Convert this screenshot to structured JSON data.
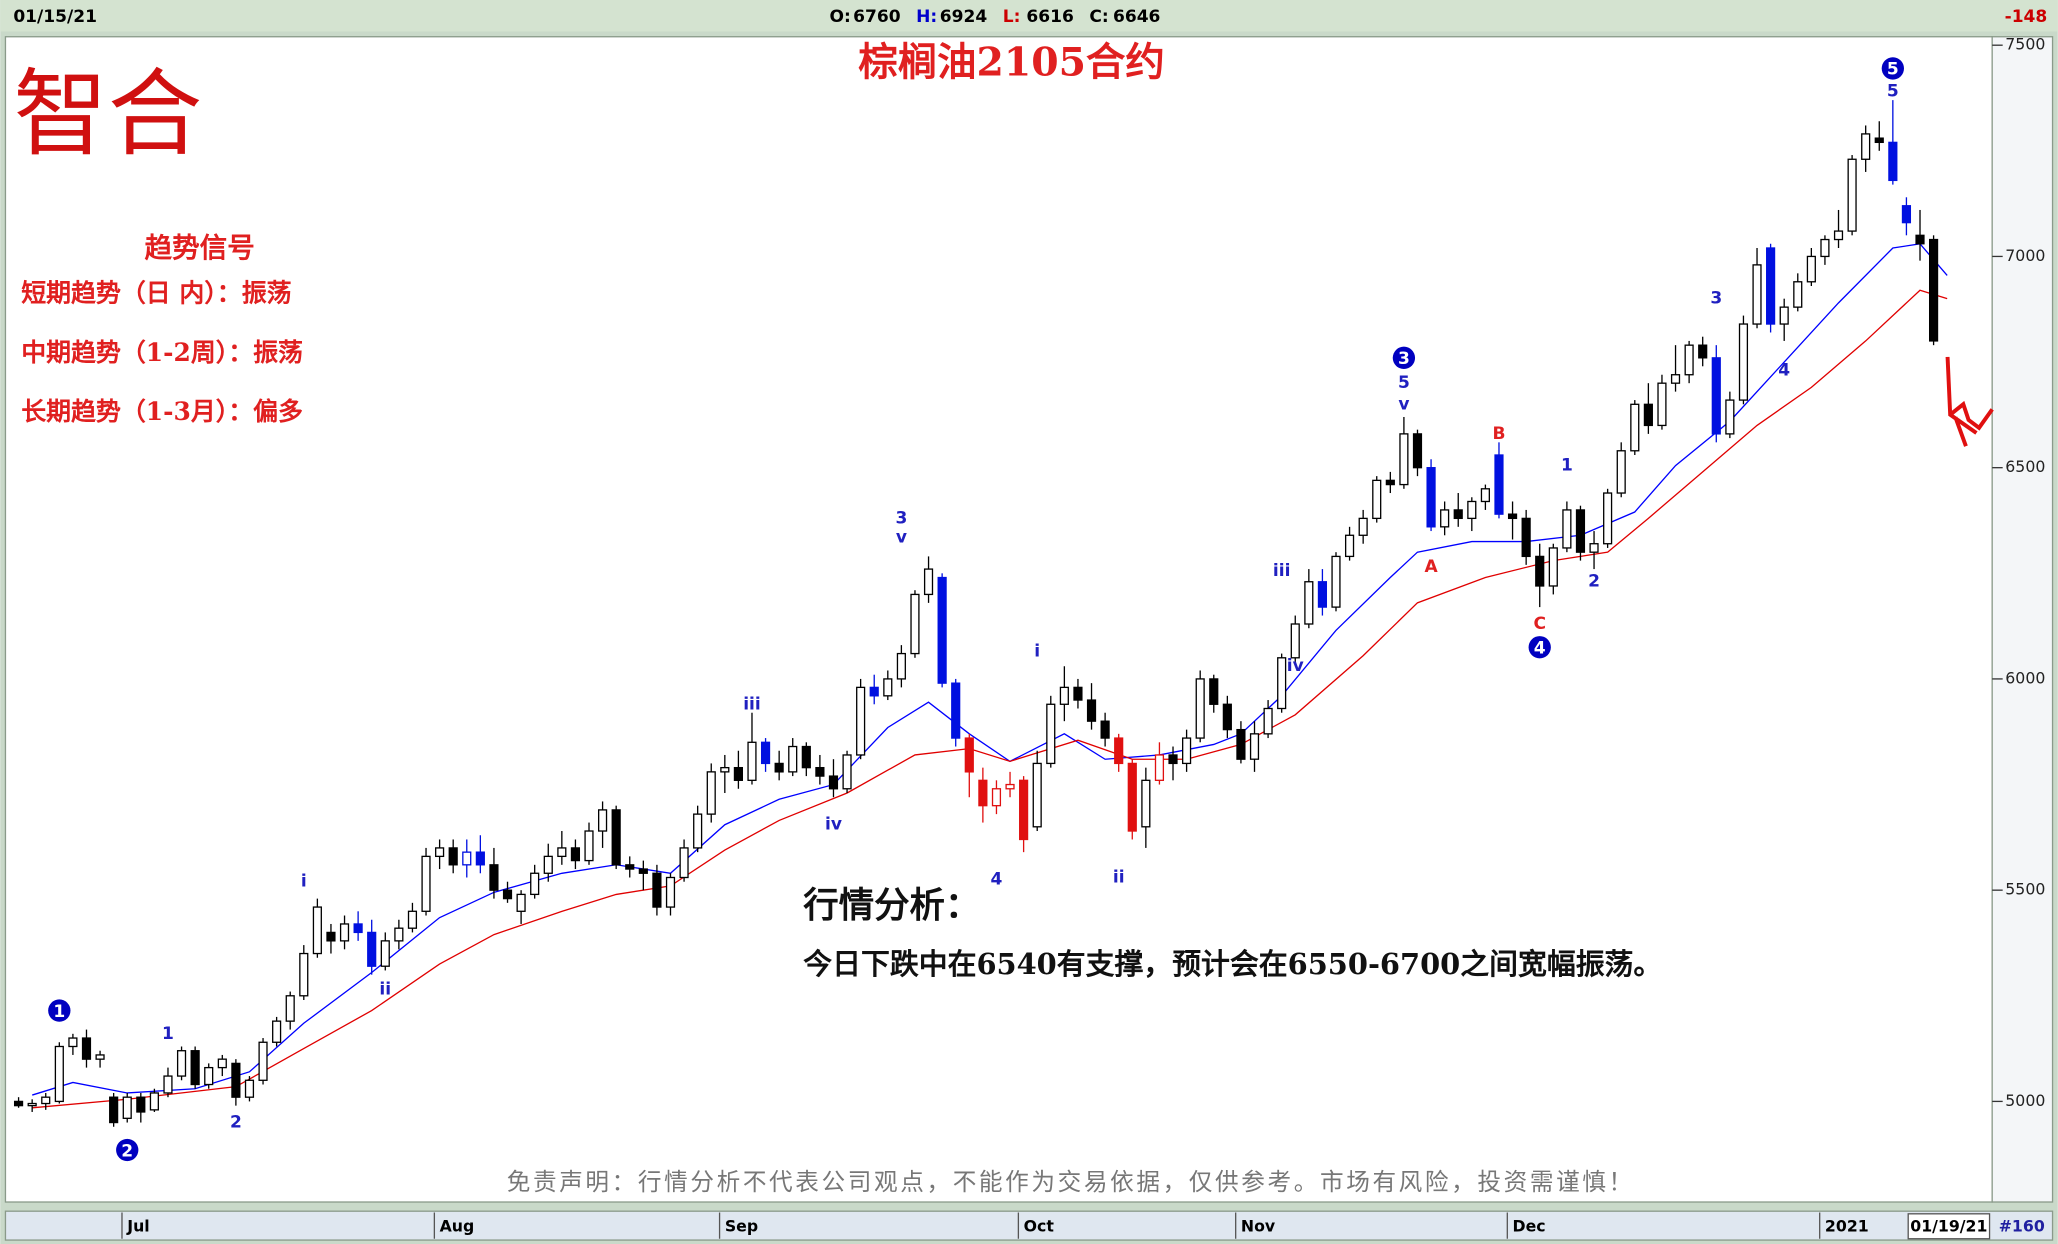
{
  "header": {
    "date": "01/15/21",
    "quote": [
      {
        "label": "O:",
        "value": 6760,
        "color": "#000000"
      },
      {
        "label": "H:",
        "value": 6924,
        "color": "#0000cc"
      },
      {
        "label": "L:",
        "value": 6616,
        "color": "#cc0000"
      },
      {
        "label": "C:",
        "value": 6646,
        "color": "#000000"
      }
    ],
    "change": -148
  },
  "logo": "智合",
  "signals": {
    "title": "趋势信号",
    "items": [
      "短期趋势（日 内）：振荡",
      "中期趋势（1-2周）：振荡",
      "长期趋势（1-3月）：偏多"
    ]
  },
  "analysis": {
    "title": "行情分析：",
    "text": "今日下跌中在6540有支撑，预计会在6550-6700之间宽幅振荡。"
  },
  "disclaimer": "免责声明：行情分析不代表公司观点，不能作为交易依据，仅供参考。市场有风险，投资需谨慎！",
  "footer": {
    "date": "01/19/21",
    "count": "#160"
  },
  "chart_data": {
    "type": "candlestick",
    "title": "棕榈油2105合约",
    "ylim": [
      4765,
      7520
    ],
    "yticks": [
      5000,
      5500,
      6000,
      6500,
      7000,
      7500
    ],
    "categories": [
      null,
      null,
      null,
      null,
      null,
      null,
      null,
      null,
      "Jul",
      null,
      null,
      null,
      null,
      null,
      null,
      null,
      null,
      null,
      null,
      null,
      null,
      null,
      null,
      null,
      null,
      null,
      null,
      null,
      null,
      null,
      null,
      "Aug",
      null,
      null,
      null,
      null,
      null,
      null,
      null,
      null,
      null,
      null,
      null,
      null,
      null,
      null,
      null,
      null,
      null,
      null,
      null,
      null,
      "Sep",
      null,
      null,
      null,
      null,
      null,
      null,
      null,
      null,
      null,
      null,
      null,
      null,
      null,
      null,
      null,
      null,
      null,
      null,
      null,
      null,
      null,
      "Oct",
      null,
      null,
      null,
      null,
      null,
      null,
      null,
      null,
      null,
      null,
      null,
      null,
      null,
      null,
      null,
      "Nov",
      null,
      null,
      null,
      null,
      null,
      null,
      null,
      null,
      null,
      null,
      null,
      null,
      null,
      null,
      null,
      null,
      null,
      null,
      null,
      "Dec",
      null,
      null,
      null,
      null,
      null,
      null,
      null,
      null,
      null,
      null,
      null,
      null,
      null,
      null,
      null,
      null,
      null,
      null,
      null,
      null,
      null,
      null,
      "2021",
      null,
      null,
      null,
      null,
      null,
      null,
      null,
      null
    ],
    "ohlc": [
      [
        5000,
        5010,
        4985,
        4990
      ],
      [
        4990,
        5005,
        4975,
        4995
      ],
      [
        4995,
        5020,
        4980,
        5010
      ],
      [
        5000,
        5140,
        4995,
        5130
      ],
      [
        5130,
        5160,
        5110,
        5150
      ],
      [
        5150,
        5170,
        5080,
        5100
      ],
      [
        5100,
        5120,
        5080,
        5110
      ],
      [
        5010,
        5020,
        4940,
        4950
      ],
      [
        4960,
        5020,
        4950,
        5010
      ],
      [
        5010,
        5020,
        4950,
        4975
      ],
      [
        4980,
        5030,
        4975,
        5020
      ],
      [
        5020,
        5080,
        5010,
        5060
      ],
      [
        5060,
        5130,
        5050,
        5120
      ],
      [
        5120,
        5130,
        5030,
        5040
      ],
      [
        5040,
        5090,
        5030,
        5080
      ],
      [
        5080,
        5110,
        5060,
        5100
      ],
      [
        5090,
        5100,
        4990,
        5010
      ],
      [
        5010,
        5060,
        5000,
        5050
      ],
      [
        5050,
        5150,
        5040,
        5140
      ],
      [
        5140,
        5200,
        5130,
        5190
      ],
      [
        5190,
        5260,
        5170,
        5250
      ],
      [
        5250,
        5370,
        5240,
        5350
      ],
      [
        5350,
        5480,
        5340,
        5460
      ],
      [
        5400,
        5420,
        5350,
        5380
      ],
      [
        5380,
        5440,
        5360,
        5420
      ],
      [
        5420,
        5450,
        5380,
        5400
      ],
      [
        5400,
        5430,
        5300,
        5320
      ],
      [
        5320,
        5400,
        5310,
        5380
      ],
      [
        5380,
        5430,
        5360,
        5410
      ],
      [
        5410,
        5470,
        5400,
        5450
      ],
      [
        5450,
        5600,
        5440,
        5580
      ],
      [
        5580,
        5620,
        5550,
        5600
      ],
      [
        5600,
        5620,
        5540,
        5560
      ],
      [
        5560,
        5620,
        5530,
        5590
      ],
      [
        5590,
        5630,
        5540,
        5560
      ],
      [
        5560,
        5600,
        5480,
        5500
      ],
      [
        5500,
        5520,
        5470,
        5480
      ],
      [
        5450,
        5500,
        5420,
        5490
      ],
      [
        5490,
        5560,
        5480,
        5540
      ],
      [
        5540,
        5610,
        5520,
        5580
      ],
      [
        5580,
        5640,
        5560,
        5600
      ],
      [
        5600,
        5620,
        5550,
        5570
      ],
      [
        5570,
        5660,
        5560,
        5640
      ],
      [
        5640,
        5710,
        5600,
        5690
      ],
      [
        5690,
        5700,
        5550,
        5560
      ],
      [
        5560,
        5580,
        5530,
        5550
      ],
      [
        5550,
        5570,
        5500,
        5540
      ],
      [
        5540,
        5560,
        5440,
        5460
      ],
      [
        5460,
        5540,
        5440,
        5530
      ],
      [
        5530,
        5620,
        5520,
        5600
      ],
      [
        5600,
        5700,
        5590,
        5680
      ],
      [
        5680,
        5800,
        5660,
        5780
      ],
      [
        5780,
        5820,
        5730,
        5790
      ],
      [
        5790,
        5830,
        5740,
        5760
      ],
      [
        5760,
        5920,
        5750,
        5850
      ],
      [
        5850,
        5860,
        5780,
        5800
      ],
      [
        5800,
        5830,
        5760,
        5780
      ],
      [
        5780,
        5860,
        5770,
        5840
      ],
      [
        5840,
        5850,
        5770,
        5790
      ],
      [
        5790,
        5820,
        5750,
        5770
      ],
      [
        5770,
        5810,
        5720,
        5740
      ],
      [
        5740,
        5830,
        5730,
        5820
      ],
      [
        5820,
        6000,
        5810,
        5980
      ],
      [
        5980,
        6010,
        5940,
        5960
      ],
      [
        5960,
        6020,
        5950,
        6000
      ],
      [
        6000,
        6080,
        5980,
        6060
      ],
      [
        6060,
        6210,
        6050,
        6200
      ],
      [
        6200,
        6290,
        6180,
        6260
      ],
      [
        6240,
        6250,
        5980,
        5990
      ],
      [
        5990,
        6000,
        5840,
        5860
      ],
      [
        5860,
        5870,
        5720,
        5780
      ],
      [
        5760,
        5790,
        5660,
        5700
      ],
      [
        5700,
        5760,
        5680,
        5740
      ],
      [
        5740,
        5780,
        5720,
        5750
      ],
      [
        5760,
        5770,
        5590,
        5620
      ],
      [
        5650,
        5830,
        5640,
        5800
      ],
      [
        5800,
        5960,
        5790,
        5940
      ],
      [
        5940,
        6030,
        5900,
        5980
      ],
      [
        5980,
        6000,
        5930,
        5950
      ],
      [
        5950,
        5990,
        5880,
        5900
      ],
      [
        5900,
        5920,
        5840,
        5860
      ],
      [
        5860,
        5870,
        5780,
        5800
      ],
      [
        5800,
        5810,
        5620,
        5640
      ],
      [
        5650,
        5790,
        5600,
        5760
      ],
      [
        5760,
        5850,
        5750,
        5820
      ],
      [
        5820,
        5840,
        5760,
        5800
      ],
      [
        5800,
        5880,
        5780,
        5860
      ],
      [
        5860,
        6020,
        5850,
        6000
      ],
      [
        6000,
        6010,
        5920,
        5940
      ],
      [
        5940,
        5960,
        5860,
        5880
      ],
      [
        5880,
        5900,
        5800,
        5810
      ],
      [
        5810,
        5900,
        5780,
        5870
      ],
      [
        5870,
        5950,
        5860,
        5930
      ],
      [
        5930,
        6060,
        5920,
        6050
      ],
      [
        6050,
        6150,
        6040,
        6130
      ],
      [
        6130,
        6260,
        6120,
        6230
      ],
      [
        6230,
        6260,
        6150,
        6170
      ],
      [
        6170,
        6300,
        6160,
        6290
      ],
      [
        6290,
        6360,
        6280,
        6340
      ],
      [
        6340,
        6400,
        6320,
        6380
      ],
      [
        6380,
        6480,
        6370,
        6470
      ],
      [
        6470,
        6490,
        6440,
        6460
      ],
      [
        6460,
        6620,
        6450,
        6580
      ],
      [
        6580,
        6590,
        6480,
        6500
      ],
      [
        6500,
        6520,
        6350,
        6360
      ],
      [
        6360,
        6420,
        6340,
        6400
      ],
      [
        6400,
        6440,
        6360,
        6380
      ],
      [
        6380,
        6430,
        6350,
        6420
      ],
      [
        6420,
        6460,
        6400,
        6450
      ],
      [
        6530,
        6560,
        6380,
        6390
      ],
      [
        6390,
        6420,
        6330,
        6380
      ],
      [
        6380,
        6400,
        6270,
        6290
      ],
      [
        6290,
        6320,
        6170,
        6220
      ],
      [
        6220,
        6320,
        6200,
        6310
      ],
      [
        6310,
        6420,
        6300,
        6400
      ],
      [
        6400,
        6410,
        6280,
        6300
      ],
      [
        6300,
        6350,
        6260,
        6320
      ],
      [
        6320,
        6450,
        6310,
        6440
      ],
      [
        6440,
        6560,
        6430,
        6540
      ],
      [
        6540,
        6660,
        6530,
        6650
      ],
      [
        6650,
        6700,
        6580,
        6600
      ],
      [
        6600,
        6720,
        6590,
        6700
      ],
      [
        6700,
        6790,
        6680,
        6720
      ],
      [
        6720,
        6800,
        6700,
        6790
      ],
      [
        6790,
        6810,
        6740,
        6760
      ],
      [
        6760,
        6790,
        6560,
        6580
      ],
      [
        6580,
        6680,
        6570,
        6660
      ],
      [
        6660,
        6860,
        6650,
        6840
      ],
      [
        6840,
        7020,
        6830,
        6980
      ],
      [
        7020,
        7030,
        6820,
        6840
      ],
      [
        6840,
        6900,
        6800,
        6880
      ],
      [
        6880,
        6960,
        6870,
        6940
      ],
      [
        6940,
        7020,
        6930,
        7000
      ],
      [
        7000,
        7050,
        6980,
        7040
      ],
      [
        7040,
        7110,
        7020,
        7060
      ],
      [
        7060,
        7240,
        7050,
        7230
      ],
      [
        7230,
        7310,
        7200,
        7290
      ],
      [
        7280,
        7320,
        7250,
        7270
      ],
      [
        7270,
        7370,
        7170,
        7180
      ],
      [
        7120,
        7140,
        7050,
        7080
      ],
      [
        7050,
        7110,
        6990,
        7030
      ],
      [
        7040,
        7050,
        6790,
        6800
      ]
    ],
    "blue_bars": [
      25,
      26,
      33,
      34,
      55,
      63,
      68,
      69,
      96,
      104,
      109,
      125,
      129,
      138,
      139
    ],
    "red_bars": [
      70,
      71,
      72,
      73,
      74,
      81,
      82,
      84
    ],
    "lines": [
      {
        "color": "#0000ff",
        "x": [
          1,
          4,
          8,
          13,
          17,
          21,
          26,
          31,
          35,
          40,
          44,
          48,
          52,
          56,
          60,
          64,
          67,
          70,
          73,
          77,
          80,
          84,
          88,
          90,
          93,
          97,
          101,
          103,
          107,
          111,
          115,
          119,
          122,
          126,
          130,
          134,
          138,
          140,
          142
        ],
        "values": [
          5015,
          5045,
          5020,
          5030,
          5070,
          5185,
          5305,
          5435,
          5495,
          5540,
          5560,
          5540,
          5655,
          5715,
          5750,
          5885,
          5945,
          5870,
          5805,
          5870,
          5810,
          5820,
          5845,
          5870,
          5960,
          6115,
          6240,
          6300,
          6325,
          6325,
          6340,
          6395,
          6505,
          6610,
          6750,
          6890,
          7020,
          7030,
          6955
        ]
      },
      {
        "color": "#e00000",
        "x": [
          1,
          8,
          16,
          21,
          26,
          31,
          35,
          40,
          44,
          48,
          52,
          56,
          61,
          66,
          70,
          73,
          78,
          82,
          86,
          90,
          94,
          99,
          103,
          108,
          113,
          117,
          120,
          124,
          128,
          132,
          136,
          140,
          142
        ],
        "values": [
          4985,
          5005,
          5035,
          5125,
          5215,
          5325,
          5395,
          5450,
          5490,
          5510,
          5595,
          5665,
          5730,
          5820,
          5835,
          5805,
          5855,
          5810,
          5810,
          5845,
          5915,
          6055,
          6180,
          6240,
          6280,
          6300,
          6380,
          6490,
          6600,
          6690,
          6800,
          6920,
          6900
        ]
      }
    ],
    "annotations": [
      {
        "label": "1",
        "x": 3,
        "y": 5215,
        "style": "circle",
        "color": "#0000c0"
      },
      {
        "label": "2",
        "x": 8,
        "y": 4885,
        "style": "circle",
        "color": "#0000c0"
      },
      {
        "label": "1",
        "x": 11,
        "y": 5160,
        "style": "plain",
        "color": "#2020c0"
      },
      {
        "label": "2",
        "x": 16,
        "y": 4950,
        "style": "plain",
        "color": "#2020c0"
      },
      {
        "label": "i",
        "x": 21,
        "y": 5520,
        "style": "plain",
        "color": "#2020c0"
      },
      {
        "label": "ii",
        "x": 27,
        "y": 5265,
        "style": "plain",
        "color": "#2020c0"
      },
      {
        "label": "iii",
        "x": 54,
        "y": 5940,
        "style": "plain",
        "color": "#2020c0"
      },
      {
        "label": "iv",
        "x": 60,
        "y": 5655,
        "style": "plain",
        "color": "#2020c0"
      },
      {
        "label": "3",
        "x": 65,
        "y": 6380,
        "style": "plain",
        "color": "#2020c0"
      },
      {
        "label": "v",
        "x": 65,
        "y": 6335,
        "style": "plain",
        "color": "#2020c0"
      },
      {
        "label": "4",
        "x": 72,
        "y": 5525,
        "style": "plain",
        "color": "#2020c0"
      },
      {
        "label": "i",
        "x": 75,
        "y": 6065,
        "style": "plain",
        "color": "#2020c0"
      },
      {
        "label": "ii",
        "x": 81,
        "y": 5530,
        "style": "plain",
        "color": "#2020c0"
      },
      {
        "label": "iii",
        "x": 93,
        "y": 6255,
        "style": "plain",
        "color": "#2020c0"
      },
      {
        "label": "iv",
        "x": 94,
        "y": 6030,
        "style": "plain",
        "color": "#2020c0"
      },
      {
        "label": "3",
        "x": 102,
        "y": 6760,
        "style": "circle",
        "color": "#0000c0"
      },
      {
        "label": "5",
        "x": 102,
        "y": 6700,
        "style": "plain",
        "color": "#2020c0"
      },
      {
        "label": "v",
        "x": 102,
        "y": 6650,
        "style": "plain",
        "color": "#2020c0"
      },
      {
        "label": "A",
        "x": 104,
        "y": 6265,
        "style": "plain",
        "color": "#e02020"
      },
      {
        "label": "B",
        "x": 109,
        "y": 6580,
        "style": "plain",
        "color": "#e02020"
      },
      {
        "label": "C",
        "x": 112,
        "y": 6130,
        "style": "plain",
        "color": "#e02020"
      },
      {
        "label": "4",
        "x": 112,
        "y": 6075,
        "style": "circle",
        "color": "#0000c0"
      },
      {
        "label": "1",
        "x": 114,
        "y": 6505,
        "style": "plain",
        "color": "#2020c0"
      },
      {
        "label": "2",
        "x": 116,
        "y": 6230,
        "style": "plain",
        "color": "#2020c0"
      },
      {
        "label": "3",
        "x": 125,
        "y": 6900,
        "style": "plain",
        "color": "#2020c0"
      },
      {
        "label": "4",
        "x": 130,
        "y": 6730,
        "style": "plain",
        "color": "#2020c0"
      },
      {
        "label": "5",
        "x": 138,
        "y": 7445,
        "style": "circle",
        "color": "#0000c0"
      },
      {
        "label": "5",
        "x": 138,
        "y": 7390,
        "style": "plain",
        "color": "#2020c0"
      }
    ]
  }
}
